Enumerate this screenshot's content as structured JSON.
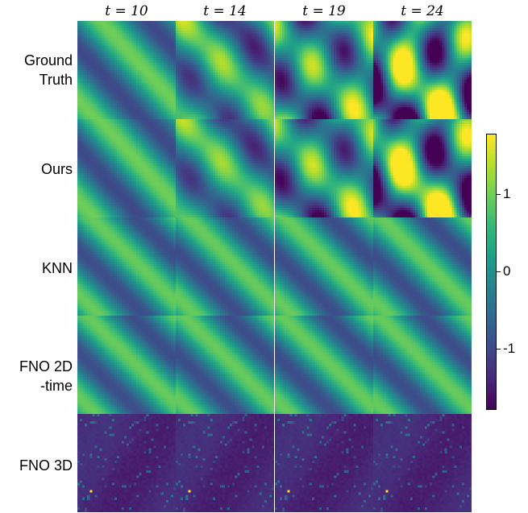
{
  "chart_data": {
    "type": "heatmap",
    "column_titles": [
      "t = 10",
      "t = 14",
      "t = 19",
      "t = 24"
    ],
    "row_labels": [
      [
        "Ground",
        "Truth"
      ],
      [
        "Ours"
      ],
      [
        "KNN"
      ],
      [
        "FNO 2D",
        "-time"
      ],
      [
        "FNO 3D"
      ]
    ],
    "colormap": "viridis",
    "colorbar": {
      "ticks": [
        1,
        0,
        -1
      ],
      "tick_labels": [
        "1",
        "0",
        "-1"
      ],
      "range": [
        -1.8,
        1.8
      ]
    }
  }
}
